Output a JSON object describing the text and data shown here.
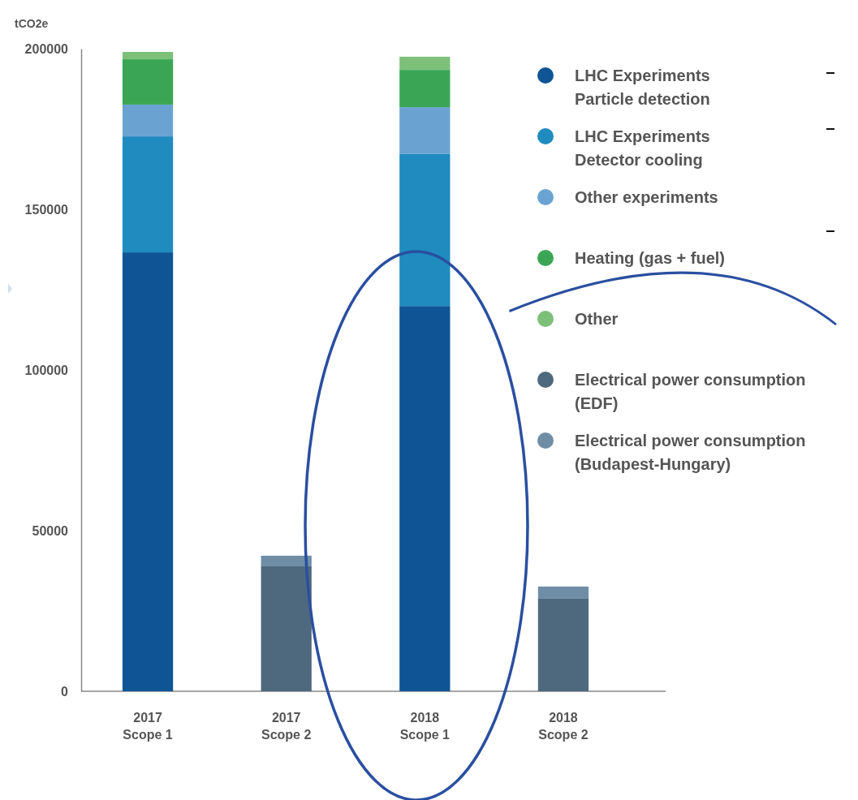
{
  "chart_data": {
    "type": "bar",
    "stacked": true,
    "ylabel": "tCO2e",
    "categories": [
      "2017\nScope 1",
      "2017\nScope 2",
      "2018\nScope 1",
      "2018\nScope 2"
    ],
    "ylim": [
      0,
      200000
    ],
    "yticks": [
      0,
      50000,
      100000,
      150000,
      200000
    ],
    "legend": "right",
    "series": [
      {
        "name": "LHC Experiments\nParticle detection",
        "color": "#0f5595",
        "values": [
          136600,
          null,
          119900,
          null
        ]
      },
      {
        "name": "LHC Experiments\nDetector cooling",
        "color": "#1f8bbf",
        "values": [
          36100,
          null,
          47300,
          null
        ]
      },
      {
        "name": "Other experiments",
        "color": "#6aa3d1",
        "values": [
          9900,
          null,
          14600,
          null
        ]
      },
      {
        "name": "Heating (gas + fuel)",
        "color": "#3aa655",
        "values": [
          14100,
          null,
          11600,
          null
        ]
      },
      {
        "name": "Other",
        "color": "#7cc07a",
        "values": [
          2300,
          null,
          4100,
          null
        ]
      },
      {
        "name": "Electrical power consumption\n(EDF)",
        "color": "#4e697e",
        "values": [
          null,
          38900,
          null,
          28800
        ]
      },
      {
        "name": "Electrical power consumption\n(Budapest-Hungary)",
        "color": "#6f8ea6",
        "values": [
          null,
          3300,
          null,
          3800
        ]
      }
    ]
  }
}
